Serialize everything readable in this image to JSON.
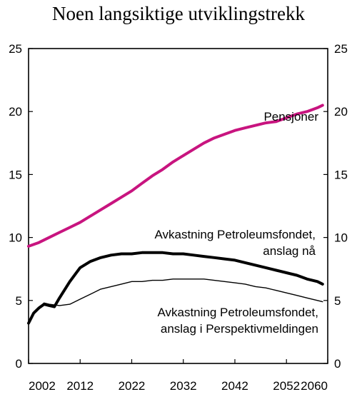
{
  "chart_data": {
    "type": "line",
    "title": "Noen langsiktige utviklingstrekk",
    "xlim": [
      2002,
      2060
    ],
    "ylim": [
      0,
      25
    ],
    "x_ticks": [
      "2002",
      "2012",
      "2022",
      "2032",
      "2042",
      "2052",
      "2060"
    ],
    "y_ticks": [
      "0",
      "5",
      "10",
      "15",
      "20",
      "25"
    ],
    "grid": false,
    "colors": {
      "pensjoner": "#c8147f",
      "anslag_naa": "#000000",
      "perspektivmeldingen": "#000000"
    },
    "series": [
      {
        "key": "pensjoner",
        "name": "Pensjoner",
        "x": [
          2002,
          2004,
          2006,
          2008,
          2010,
          2012,
          2014,
          2016,
          2018,
          2020,
          2022,
          2024,
          2026,
          2028,
          2030,
          2032,
          2034,
          2036,
          2038,
          2040,
          2042,
          2044,
          2046,
          2048,
          2050,
          2052,
          2054,
          2056,
          2058,
          2059
        ],
        "values": [
          9.3,
          9.6,
          10.0,
          10.4,
          10.8,
          11.2,
          11.7,
          12.2,
          12.7,
          13.2,
          13.7,
          14.3,
          14.9,
          15.4,
          16.0,
          16.5,
          17.0,
          17.5,
          17.9,
          18.2,
          18.5,
          18.7,
          18.9,
          19.1,
          19.2,
          19.5,
          19.8,
          20.0,
          20.3,
          20.5
        ]
      },
      {
        "key": "anslag_naa",
        "name": "Avkastning Petroleumsfondet, anslag nå",
        "labels": [
          "Avkastning Petroleumsfondet,",
          "anslag nå"
        ],
        "x": [
          2002,
          2003,
          2004,
          2005,
          2006,
          2007,
          2008,
          2010,
          2012,
          2014,
          2016,
          2018,
          2020,
          2022,
          2024,
          2026,
          2028,
          2030,
          2032,
          2034,
          2036,
          2038,
          2040,
          2042,
          2044,
          2046,
          2048,
          2050,
          2052,
          2054,
          2056,
          2058,
          2059
        ],
        "values": [
          3.2,
          4.0,
          4.4,
          4.7,
          4.6,
          4.5,
          5.2,
          6.5,
          7.6,
          8.1,
          8.4,
          8.6,
          8.7,
          8.7,
          8.8,
          8.8,
          8.8,
          8.7,
          8.7,
          8.6,
          8.5,
          8.4,
          8.3,
          8.2,
          8.0,
          7.8,
          7.6,
          7.4,
          7.2,
          7.0,
          6.7,
          6.5,
          6.3
        ]
      },
      {
        "key": "perspektivmeldingen",
        "name": "Avkastning Petroleumsfondet, anslag i Perspektivmeldingen",
        "labels": [
          "Avkastning Petroleumsfondet,",
          "anslag i Perspektivmeldingen"
        ],
        "x": [
          2002,
          2003,
          2004,
          2005,
          2006,
          2008,
          2010,
          2012,
          2014,
          2016,
          2018,
          2020,
          2022,
          2024,
          2026,
          2028,
          2030,
          2032,
          2034,
          2036,
          2038,
          2040,
          2042,
          2044,
          2046,
          2048,
          2050,
          2052,
          2054,
          2056,
          2058,
          2059
        ],
        "values": [
          3.2,
          4.0,
          4.4,
          4.8,
          4.7,
          4.6,
          4.7,
          5.1,
          5.5,
          5.9,
          6.1,
          6.3,
          6.5,
          6.5,
          6.6,
          6.6,
          6.7,
          6.7,
          6.7,
          6.7,
          6.6,
          6.5,
          6.4,
          6.3,
          6.1,
          6.0,
          5.8,
          5.6,
          5.4,
          5.2,
          5.0,
          4.9
        ]
      }
    ]
  }
}
